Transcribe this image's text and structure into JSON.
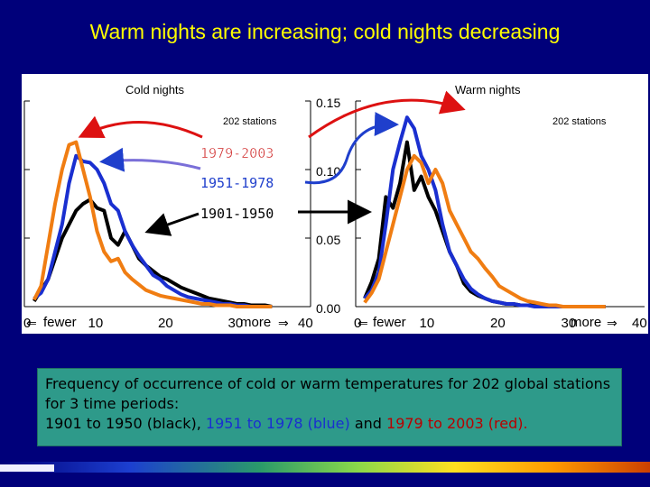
{
  "slide_title": "Warm nights are increasing; cold nights decreasing",
  "colors": {
    "background": "#00007a",
    "title": "#ffff00",
    "period_1901_1950": "#000000",
    "period_1951_1978": "#1a2fd0",
    "period_1979_2003": "#f07d12",
    "label_1979_2003": "#cc1a1a",
    "label_1951_1978": "#1f3fcc",
    "caption_box": "#2e9a8a"
  },
  "period_labels": {
    "p3": "1979-2003",
    "p2": "1951-1978",
    "p1": "1901-1950"
  },
  "y_ticks": [
    "0.15",
    "0.10",
    "0.05",
    "0.00"
  ],
  "x_ticks_left": [
    "0",
    "10",
    "20",
    "30",
    "40"
  ],
  "x_ticks_right": [
    "0",
    "10",
    "20",
    "30",
    "40"
  ],
  "arrow_labels": {
    "fewer": "fewer",
    "more": "more"
  },
  "caption": {
    "line1": "Frequency of occurrence of cold or warm temperatures for 202 global stations for 3 time periods:",
    "prefix": "1901 to 1950 (black),",
    "blue_part": "1951 to 1978 (blue)",
    "conj": "and",
    "red_part": "1979 to 2003 (red)",
    "end": "."
  },
  "chart_data": [
    {
      "type": "line",
      "title": "Cold nights",
      "subtitle": "202 stations",
      "xlim": [
        0,
        40
      ],
      "ylim": [
        0,
        0.15
      ],
      "x": [
        1,
        2,
        3,
        4,
        5,
        6,
        7,
        8,
        9,
        10,
        11,
        12,
        13,
        14,
        15,
        16,
        17,
        18,
        19,
        20,
        21,
        22,
        23,
        24,
        25,
        26,
        27,
        28,
        29,
        30,
        31,
        32,
        33,
        34,
        35
      ],
      "series": [
        {
          "name": "1901-1950",
          "color": "#000000",
          "values": [
            0.004,
            0.012,
            0.02,
            0.035,
            0.05,
            0.06,
            0.07,
            0.075,
            0.078,
            0.072,
            0.07,
            0.05,
            0.045,
            0.055,
            0.045,
            0.035,
            0.03,
            0.026,
            0.022,
            0.02,
            0.017,
            0.014,
            0.012,
            0.01,
            0.008,
            0.006,
            0.005,
            0.004,
            0.003,
            0.002,
            0.002,
            0.001,
            0.001,
            0.001,
            0.0
          ]
        },
        {
          "name": "1951-1978",
          "color": "#1a2fd0",
          "values": [
            0.006,
            0.01,
            0.02,
            0.04,
            0.06,
            0.09,
            0.11,
            0.106,
            0.105,
            0.1,
            0.09,
            0.075,
            0.07,
            0.055,
            0.045,
            0.037,
            0.03,
            0.023,
            0.02,
            0.015,
            0.012,
            0.009,
            0.007,
            0.006,
            0.005,
            0.004,
            0.003,
            0.002,
            0.002,
            0.001,
            0.001,
            0.0,
            0.0,
            0.0,
            0.0
          ]
        },
        {
          "name": "1979-2003",
          "color": "#f07d12",
          "values": [
            0.005,
            0.015,
            0.045,
            0.075,
            0.1,
            0.118,
            0.12,
            0.1,
            0.08,
            0.055,
            0.04,
            0.033,
            0.035,
            0.025,
            0.02,
            0.016,
            0.012,
            0.01,
            0.008,
            0.007,
            0.006,
            0.005,
            0.004,
            0.003,
            0.002,
            0.002,
            0.001,
            0.001,
            0.001,
            0.0,
            0.0,
            0.0,
            0.0,
            0.0,
            0.0
          ]
        }
      ]
    },
    {
      "type": "line",
      "title": "Warm nights",
      "subtitle": "202 stations",
      "xlim": [
        0,
        40
      ],
      "ylim": [
        0,
        0.15
      ],
      "x": [
        1,
        2,
        3,
        4,
        5,
        6,
        7,
        8,
        9,
        10,
        11,
        12,
        13,
        14,
        15,
        16,
        17,
        18,
        19,
        20,
        21,
        22,
        23,
        24,
        25,
        26,
        27,
        28,
        29,
        30,
        31,
        32,
        33,
        34,
        35
      ],
      "series": [
        {
          "name": "1901-1950",
          "color": "#000000",
          "values": [
            0.006,
            0.018,
            0.035,
            0.08,
            0.072,
            0.09,
            0.12,
            0.085,
            0.095,
            0.08,
            0.07,
            0.055,
            0.04,
            0.03,
            0.017,
            0.011,
            0.008,
            0.006,
            0.004,
            0.003,
            0.002,
            0.002,
            0.001,
            0.001,
            0.001,
            0.0,
            0.0,
            0.0,
            0.0,
            0.0,
            0.0,
            0.0,
            0.0,
            0.0,
            0.0
          ]
        },
        {
          "name": "1951-1978",
          "color": "#1a2fd0",
          "values": [
            0.006,
            0.012,
            0.025,
            0.06,
            0.1,
            0.12,
            0.138,
            0.13,
            0.11,
            0.1,
            0.085,
            0.06,
            0.04,
            0.03,
            0.02,
            0.013,
            0.009,
            0.006,
            0.004,
            0.003,
            0.002,
            0.002,
            0.001,
            0.001,
            0.0,
            0.0,
            0.0,
            0.0,
            0.0,
            0.0,
            0.0,
            0.0,
            0.0,
            0.0,
            0.0
          ]
        },
        {
          "name": "1979-2003",
          "color": "#f07d12",
          "values": [
            0.003,
            0.01,
            0.02,
            0.04,
            0.06,
            0.08,
            0.1,
            0.11,
            0.105,
            0.09,
            0.1,
            0.09,
            0.07,
            0.06,
            0.05,
            0.04,
            0.035,
            0.028,
            0.022,
            0.015,
            0.012,
            0.009,
            0.006,
            0.004,
            0.003,
            0.002,
            0.001,
            0.001,
            0.0,
            0.0,
            0.0,
            0.0,
            0.0,
            0.0,
            0.0
          ]
        }
      ]
    }
  ]
}
